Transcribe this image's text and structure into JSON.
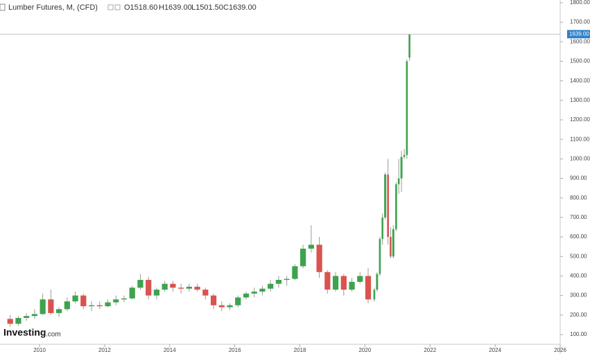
{
  "chart_data": {
    "type": "candlestick",
    "title": "Lumber Futures, M, (CFD)",
    "legend_ohlc": [
      "O1518.60",
      "H1639.00",
      "L1501.50",
      "C1639.00"
    ],
    "watermark": [
      "Investing",
      ".com"
    ],
    "up_color": "#3ea34f",
    "down_color": "#d9534f",
    "last_price": {
      "value": 1639,
      "label": "1639.00"
    },
    "last_price_color": "#2f80c9",
    "x": [
      2009.0,
      2009.25,
      2009.5,
      2009.75,
      2010.0,
      2010.25,
      2010.5,
      2010.75,
      2011.0,
      2011.25,
      2011.5,
      2011.75,
      2012.0,
      2012.25,
      2012.5,
      2012.75,
      2013.0,
      2013.25,
      2013.5,
      2013.75,
      2014.0,
      2014.25,
      2014.5,
      2014.75,
      2015.0,
      2015.25,
      2015.5,
      2015.75,
      2016.0,
      2016.25,
      2016.5,
      2016.75,
      2017.0,
      2017.25,
      2017.5,
      2017.75,
      2018.0,
      2018.25,
      2018.5,
      2018.75,
      2019.0,
      2019.25,
      2019.5,
      2019.75,
      2020.0,
      2020.25,
      2020.33,
      2020.42,
      2020.5,
      2020.58,
      2020.67,
      2020.75,
      2020.83,
      2020.92,
      2021.0,
      2021.08,
      2021.17,
      2021.25,
      2021.33
    ],
    "open": [
      180,
      155,
      185,
      195,
      205,
      280,
      210,
      230,
      270,
      300,
      245,
      250,
      245,
      265,
      280,
      285,
      340,
      380,
      300,
      330,
      360,
      340,
      335,
      345,
      330,
      300,
      250,
      240,
      250,
      290,
      310,
      320,
      335,
      360,
      380,
      385,
      450,
      540,
      560,
      420,
      330,
      400,
      330,
      370,
      400,
      280,
      330,
      410,
      590,
      700,
      920,
      600,
      500,
      640,
      870,
      900,
      1010,
      1020,
      1518.6
    ],
    "high": [
      200,
      195,
      210,
      230,
      310,
      330,
      240,
      290,
      320,
      310,
      270,
      270,
      280,
      300,
      300,
      350,
      410,
      395,
      340,
      375,
      375,
      360,
      360,
      360,
      340,
      310,
      270,
      260,
      300,
      320,
      340,
      350,
      380,
      400,
      400,
      460,
      560,
      660,
      600,
      430,
      420,
      410,
      390,
      420,
      440,
      340,
      420,
      600,
      720,
      930,
      1000,
      650,
      660,
      880,
      1000,
      1040,
      1050,
      1510,
      1639
    ],
    "low": [
      140,
      145,
      170,
      180,
      200,
      200,
      190,
      220,
      260,
      230,
      220,
      230,
      240,
      250,
      265,
      280,
      330,
      280,
      280,
      320,
      320,
      310,
      320,
      320,
      280,
      230,
      220,
      225,
      240,
      280,
      290,
      300,
      320,
      340,
      350,
      380,
      440,
      520,
      390,
      310,
      320,
      300,
      320,
      360,
      260,
      270,
      320,
      400,
      560,
      690,
      560,
      490,
      490,
      630,
      820,
      830,
      1000,
      1000,
      1501.5
    ],
    "close": [
      155,
      185,
      195,
      205,
      280,
      210,
      230,
      270,
      300,
      245,
      250,
      245,
      265,
      280,
      285,
      340,
      380,
      300,
      330,
      360,
      340,
      335,
      345,
      330,
      300,
      250,
      240,
      250,
      290,
      310,
      320,
      335,
      360,
      380,
      385,
      450,
      540,
      560,
      420,
      330,
      400,
      330,
      370,
      400,
      280,
      330,
      410,
      590,
      700,
      920,
      600,
      500,
      640,
      870,
      900,
      1010,
      1020,
      1500,
      1639
    ],
    "xlim": [
      2008.785,
      2026.0
    ],
    "xticks": [
      2010,
      2012,
      2014,
      2016,
      2018,
      2020,
      2022,
      2024,
      2026
    ],
    "ylim": [
      50,
      1814
    ],
    "yticks": [
      {
        "value": 100,
        "label": "100.00"
      },
      {
        "value": 200,
        "label": "200.00"
      },
      {
        "value": 300,
        "label": "300.00"
      },
      {
        "value": 400,
        "label": "400.00"
      },
      {
        "value": 500,
        "label": "500.00"
      },
      {
        "value": 600,
        "label": "600.00"
      },
      {
        "value": 700,
        "label": "700.00"
      },
      {
        "value": 800,
        "label": "800.00"
      },
      {
        "value": 900,
        "label": "900.00"
      },
      {
        "value": 1000,
        "label": "1000.00"
      },
      {
        "value": 1100,
        "label": "1100.00"
      },
      {
        "value": 1200,
        "label": "1200.00"
      },
      {
        "value": 1300,
        "label": "1300.00"
      },
      {
        "value": 1400,
        "label": "1400.00"
      },
      {
        "value": 1500,
        "label": "1500.00"
      },
      {
        "value": 1600,
        "label": "1600.00"
      },
      {
        "value": 1700,
        "label": "1700.00"
      },
      {
        "value": 1800,
        "label": "1800.00"
      }
    ]
  }
}
